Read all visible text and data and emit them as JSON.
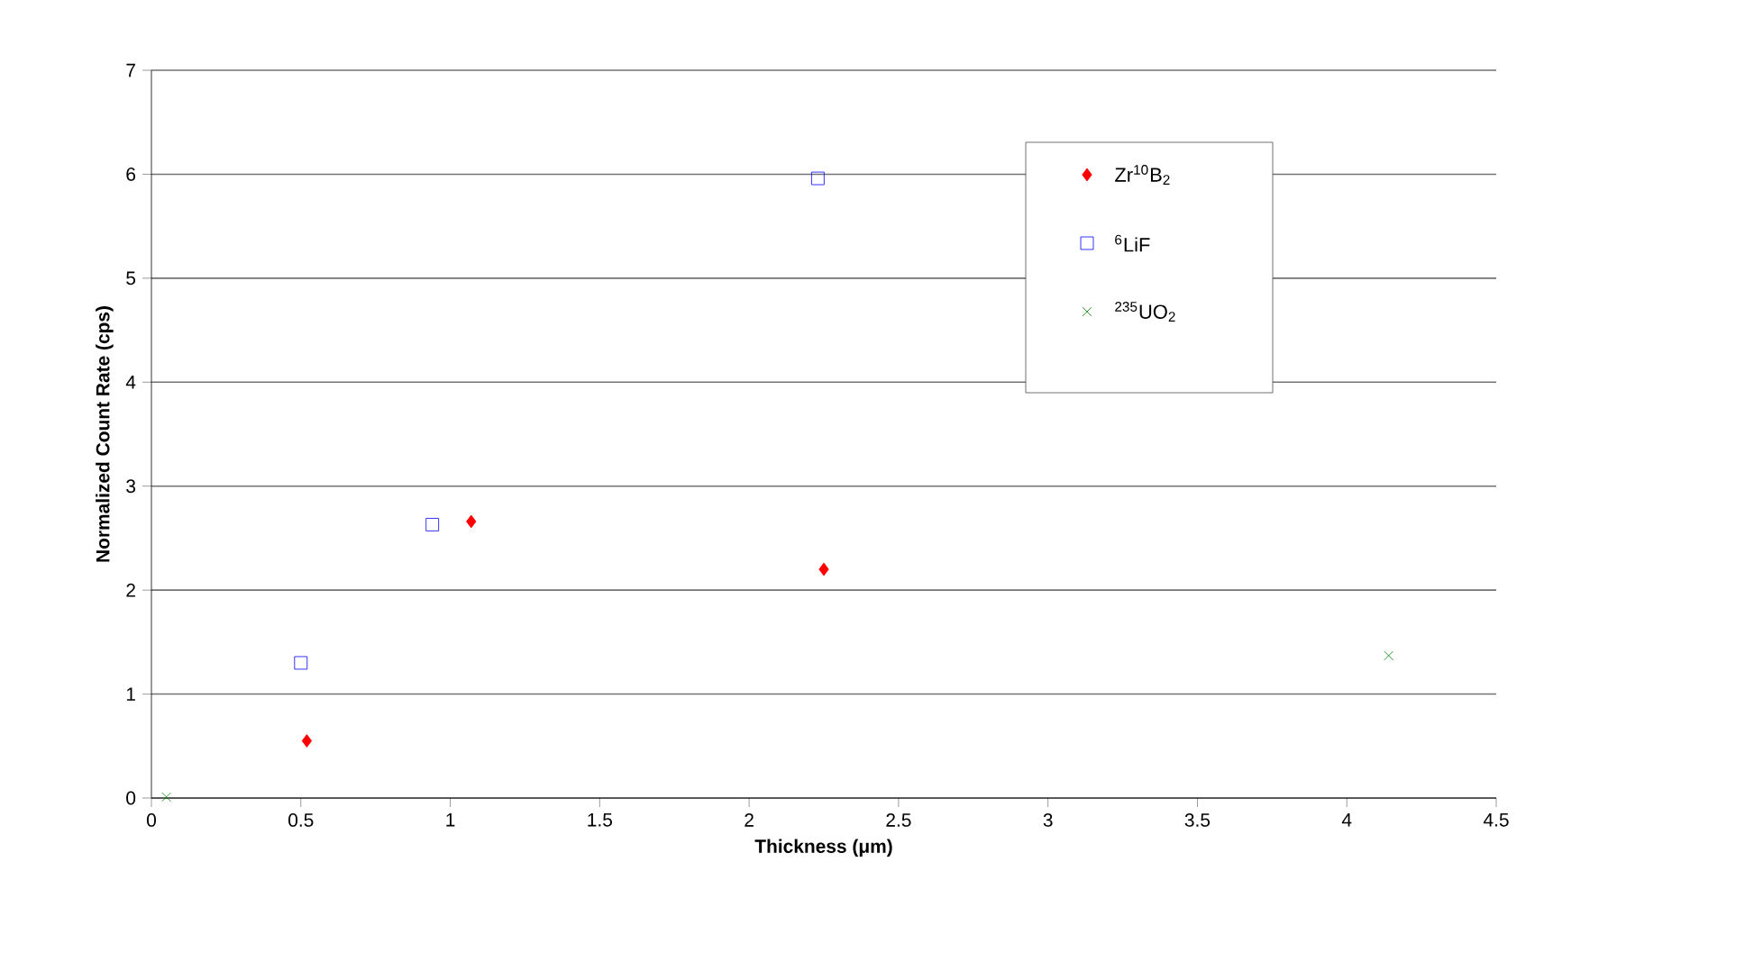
{
  "chart_data": {
    "type": "scatter",
    "xlabel": "Thickness (μm)",
    "ylabel": "Normalized Count Rate (cps)",
    "xlim": [
      0,
      4.5
    ],
    "xticks": [
      0,
      0.5,
      1,
      1.5,
      2,
      2.5,
      3,
      3.5,
      4,
      4.5
    ],
    "ylim": [
      0,
      7
    ],
    "yticks": [
      0,
      1,
      2,
      3,
      4,
      5,
      6,
      7
    ],
    "grid": "y",
    "legend": "top right",
    "series": [
      {
        "name": "Zr$^{10}$B$_{2}$",
        "color": "#ff0000",
        "marker": "diamond",
        "x": [
          0.52,
          1.07,
          2.25
        ],
        "values": [
          0.55,
          2.66,
          2.2
        ]
      },
      {
        "name": "$^{6}$LiF",
        "color": "#0000ff",
        "marker": "square",
        "x": [
          0.5,
          0.94,
          2.23
        ],
        "values": [
          1.3,
          2.63,
          5.96
        ]
      },
      {
        "name": "$^{235}$UO$_{2}$",
        "color": "#008000",
        "marker": "cross",
        "x": [
          0.05,
          4.14
        ],
        "values": [
          0.01,
          1.37
        ]
      }
    ]
  }
}
